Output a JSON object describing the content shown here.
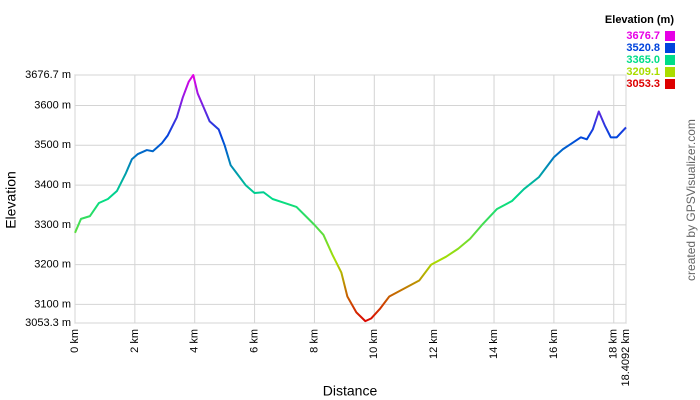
{
  "chart_data": {
    "type": "line",
    "x_label": "Distance",
    "y_label": "Elevation",
    "credit": "created by GPSVisualizer.com",
    "legend_title": "Elevation (m)",
    "legend": [
      {
        "value": 3676.7,
        "label": "3676.7",
        "color": "#e600e6"
      },
      {
        "value": 3520.8,
        "label": "3520.8",
        "color": "#0044dd"
      },
      {
        "value": 3365,
        "label": "3365.0",
        "color": "#00dd88"
      },
      {
        "value": 3209.1,
        "label": "3209.1",
        "color": "#aadd00"
      },
      {
        "value": 3053.3,
        "label": "3053.3",
        "color": "#dd0000"
      }
    ],
    "xlim": [
      0,
      18.4092
    ],
    "ylim": [
      3053.3,
      3676.7
    ],
    "xticks": [
      {
        "value": 0,
        "label": "0 km"
      },
      {
        "value": 2,
        "label": "2 km"
      },
      {
        "value": 4,
        "label": "4 km"
      },
      {
        "value": 6,
        "label": "6 km"
      },
      {
        "value": 8,
        "label": "8 km"
      },
      {
        "value": 10,
        "label": "10 km"
      },
      {
        "value": 12,
        "label": "12 km"
      },
      {
        "value": 14,
        "label": "14 km"
      },
      {
        "value": 16,
        "label": "16 km"
      },
      {
        "value": 18,
        "label": "18 km"
      },
      {
        "value": 18.4092,
        "label": "18.4092 km"
      }
    ],
    "yticks": [
      {
        "value": 3053.3,
        "label": "3053.3 m"
      },
      {
        "value": 3100,
        "label": "3100 m"
      },
      {
        "value": 3200,
        "label": "3200 m"
      },
      {
        "value": 3300,
        "label": "3300 m"
      },
      {
        "value": 3400,
        "label": "3400 m"
      },
      {
        "value": 3500,
        "label": "3500 m"
      },
      {
        "value": 3600,
        "label": "3600 m"
      },
      {
        "value": 3676.7,
        "label": "3676.7 m"
      }
    ],
    "grid": true,
    "x": [
      0,
      0.2,
      0.5,
      0.8,
      1.1,
      1.4,
      1.7,
      1.9,
      2.1,
      2.4,
      2.6,
      2.9,
      3.1,
      3.4,
      3.6,
      3.8,
      3.95,
      4.1,
      4.3,
      4.5,
      4.8,
      5.0,
      5.2,
      5.4,
      5.7,
      6.0,
      6.3,
      6.6,
      7.0,
      7.4,
      7.8,
      8.0,
      8.3,
      8.6,
      8.9,
      9.1,
      9.4,
      9.7,
      9.9,
      10.2,
      10.5,
      11.0,
      11.5,
      11.9,
      12.4,
      12.8,
      13.2,
      13.6,
      14.1,
      14.6,
      15.0,
      15.5,
      16.0,
      16.3,
      16.6,
      16.9,
      17.1,
      17.3,
      17.5,
      17.7,
      17.9,
      18.1,
      18.4092
    ],
    "values": [
      3280,
      3315,
      3322,
      3355,
      3365,
      3385,
      3430,
      3465,
      3478,
      3488,
      3485,
      3505,
      3525,
      3570,
      3620,
      3660,
      3676.7,
      3630,
      3595,
      3560,
      3540,
      3500,
      3450,
      3430,
      3400,
      3380,
      3382,
      3365,
      3355,
      3345,
      3315,
      3300,
      3275,
      3225,
      3180,
      3120,
      3080,
      3058,
      3065,
      3090,
      3120,
      3140,
      3160,
      3200,
      3220,
      3240,
      3265,
      3300,
      3340,
      3360,
      3390,
      3420,
      3470,
      3490,
      3505,
      3520,
      3515,
      3540,
      3585,
      3550,
      3520,
      3520,
      3545
    ]
  }
}
